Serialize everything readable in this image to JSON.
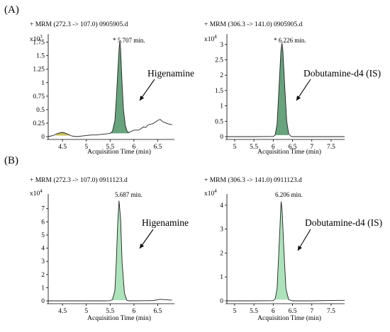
{
  "panels": [
    {
      "label": "(A)"
    },
    {
      "label": "(B)"
    }
  ],
  "chart_data": [
    {
      "type": "line",
      "header": "+ MRM (272.3 -> 107.0) 0905905.d",
      "y_multiplier_base": "x10",
      "y_multiplier_exp": "3",
      "xlabel": "Acquisition Time (min)",
      "xlim": [
        4.2,
        6.85
      ],
      "ylim": [
        0,
        1.85
      ],
      "xticks": [
        "4.5",
        "5",
        "5.5",
        "6",
        "6.5"
      ],
      "yticks": [
        "0",
        "0.25",
        "0.5",
        "0.75",
        "1",
        "1.25",
        "1.5",
        "1.75"
      ],
      "peak_label": "* 5.707 min.",
      "compound_label": "Higenamine",
      "fill_color": "#5f9e76",
      "small_fill_color": "#c9c25a",
      "series": [
        {
          "x": [
            4.2,
            4.3,
            4.4,
            4.5,
            4.6,
            4.7,
            4.8,
            4.9,
            5.0,
            5.1,
            5.2,
            5.3,
            5.4,
            5.5,
            5.55,
            5.6,
            5.63,
            5.66,
            5.69,
            5.707,
            5.72,
            5.75,
            5.78,
            5.82,
            5.86,
            5.9,
            6.0,
            6.1,
            6.2,
            6.25,
            6.3,
            6.4,
            6.5,
            6.55,
            6.6,
            6.7,
            6.8
          ],
          "y": [
            0.0,
            0.02,
            0.06,
            0.08,
            0.05,
            0.01,
            0.0,
            0.01,
            0.02,
            0.03,
            0.03,
            0.04,
            0.05,
            0.06,
            0.1,
            0.3,
            0.7,
            1.2,
            1.65,
            1.77,
            1.6,
            1.0,
            0.5,
            0.2,
            0.09,
            0.08,
            0.12,
            0.12,
            0.18,
            0.17,
            0.22,
            0.24,
            0.3,
            0.32,
            0.28,
            0.24,
            0.22
          ]
        }
      ]
    },
    {
      "type": "line",
      "header": "+ MRM (306.3 -> 141.0) 0905905.d",
      "y_multiplier_base": "x10",
      "y_multiplier_exp": "4",
      "xlabel": "Acquisition Time (min)",
      "xlim": [
        4.8,
        7.85
      ],
      "ylim": [
        0,
        3.25
      ],
      "xticks": [
        "5",
        "5.5",
        "6",
        "6.5",
        "7",
        "7.5"
      ],
      "yticks": [
        "0",
        "0.5",
        "1",
        "1.5",
        "2",
        "2.5",
        "3"
      ],
      "peak_label": "* 6.226 min.",
      "compound_label": "Dobutamine-d4 (IS)",
      "fill_color": "#5f9e76",
      "series": [
        {
          "x": [
            4.8,
            5.5,
            6.0,
            6.05,
            6.1,
            6.15,
            6.2,
            6.226,
            6.25,
            6.3,
            6.35,
            6.4,
            6.45,
            6.5,
            7.0,
            7.85
          ],
          "y": [
            0,
            0,
            0.005,
            0.05,
            0.4,
            1.6,
            2.8,
            3.05,
            2.8,
            1.6,
            0.5,
            0.1,
            0.02,
            0.0,
            0,
            0
          ]
        }
      ]
    },
    {
      "type": "line",
      "header": "+ MRM (272.3 -> 107.0) 0911123.d",
      "y_multiplier_base": "x10",
      "y_multiplier_exp": "4",
      "xlabel": "Acquisition Time (min)",
      "xlim": [
        4.2,
        6.85
      ],
      "ylim": [
        0,
        7.9
      ],
      "xticks": [
        "4.5",
        "5",
        "5.5",
        "6",
        "6.5"
      ],
      "yticks": [
        "0",
        "1",
        "2",
        "3",
        "4",
        "5",
        "6",
        "7"
      ],
      "peak_label": "5.687 min.",
      "compound_label": "Higenamine",
      "fill_color": "#a8e2b7",
      "series": [
        {
          "x": [
            4.2,
            5.0,
            5.4,
            5.5,
            5.55,
            5.6,
            5.63,
            5.66,
            5.687,
            5.72,
            5.75,
            5.8,
            5.85,
            5.9,
            6.2,
            6.4,
            6.55,
            6.7,
            6.8
          ],
          "y": [
            0,
            0,
            0,
            0.01,
            0.1,
            0.8,
            3.0,
            6.0,
            7.6,
            6.2,
            3.0,
            0.6,
            0.05,
            0.0,
            0.01,
            0.02,
            0.12,
            0.08,
            0.05
          ]
        }
      ]
    },
    {
      "type": "line",
      "header": "+ MRM (306.3 -> 141.0) 0911123.d",
      "y_multiplier_base": "x10",
      "y_multiplier_exp": "4",
      "xlabel": "Acquisition Time (min)",
      "xlim": [
        4.8,
        7.85
      ],
      "ylim": [
        0,
        4.35
      ],
      "xticks": [
        "5",
        "5.5",
        "6",
        "6.5",
        "7",
        "7.5"
      ],
      "yticks": [
        "0",
        "1",
        "2",
        "3",
        "4"
      ],
      "peak_label": "6.206 min.",
      "compound_label": "Dobutamine-d4 (IS)",
      "fill_color": "#a8e2b7",
      "series": [
        {
          "x": [
            4.8,
            5.5,
            6.0,
            6.05,
            6.1,
            6.15,
            6.2,
            6.206,
            6.23,
            6.28,
            6.33,
            6.4,
            6.5,
            7.0,
            7.7,
            7.85
          ],
          "y": [
            0,
            0,
            0.005,
            0.08,
            0.5,
            2.2,
            4.0,
            4.15,
            3.8,
            2.0,
            0.5,
            0.05,
            0.0,
            0,
            0.02,
            0.02
          ]
        }
      ]
    }
  ]
}
